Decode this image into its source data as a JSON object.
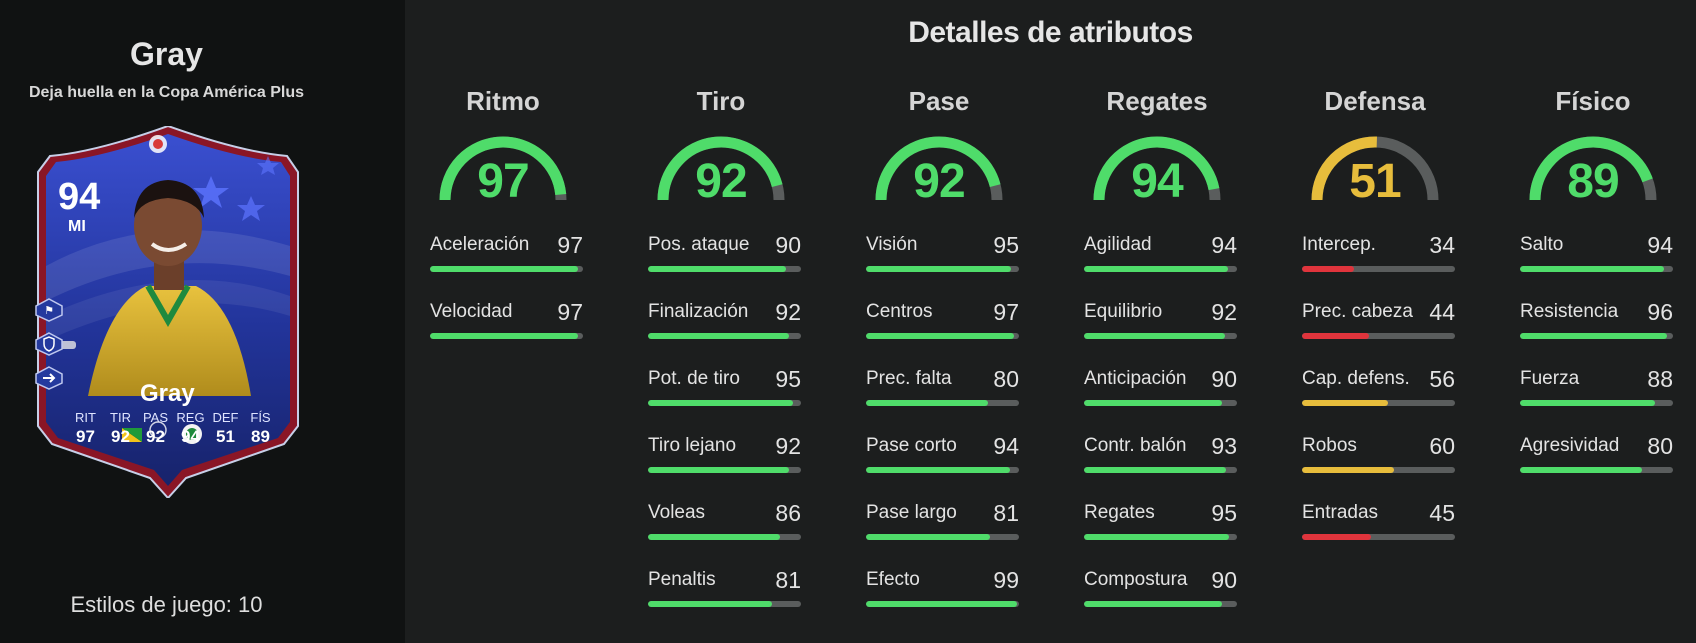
{
  "player": {
    "name": "Gray",
    "subtitle": "Deja huella en la Copa América Plus",
    "styles_label": "Estilos de juego: 10"
  },
  "card": {
    "ovr": "94",
    "position": "MI",
    "name": "Gray",
    "stats": [
      {
        "label": "RIT",
        "value": "97"
      },
      {
        "label": "TIR",
        "value": "92"
      },
      {
        "label": "PAS",
        "value": "92"
      },
      {
        "label": "REG",
        "value": "94"
      },
      {
        "label": "DEF",
        "value": "51"
      },
      {
        "label": "FÍS",
        "value": "89"
      }
    ],
    "side_icons": [
      "tactic-icon",
      "shield-icon",
      "arrow-right-icon"
    ]
  },
  "details": {
    "title": "Detalles de atributos",
    "categories": [
      {
        "name": "Ritmo",
        "value": 97,
        "color": "#4fdc6a",
        "attrs": [
          {
            "label": "Aceleración",
            "value": 97
          },
          {
            "label": "Velocidad",
            "value": 97
          }
        ]
      },
      {
        "name": "Tiro",
        "value": 92,
        "color": "#4fdc6a",
        "attrs": [
          {
            "label": "Pos. ataque",
            "value": 90
          },
          {
            "label": "Finalización",
            "value": 92
          },
          {
            "label": "Pot. de tiro",
            "value": 95
          },
          {
            "label": "Tiro lejano",
            "value": 92
          },
          {
            "label": "Voleas",
            "value": 86
          },
          {
            "label": "Penaltis",
            "value": 81
          }
        ]
      },
      {
        "name": "Pase",
        "value": 92,
        "color": "#4fdc6a",
        "attrs": [
          {
            "label": "Visión",
            "value": 95
          },
          {
            "label": "Centros",
            "value": 97
          },
          {
            "label": "Prec. falta",
            "value": 80
          },
          {
            "label": "Pase corto",
            "value": 94
          },
          {
            "label": "Pase largo",
            "value": 81
          },
          {
            "label": "Efecto",
            "value": 99
          }
        ]
      },
      {
        "name": "Regates",
        "value": 94,
        "color": "#4fdc6a",
        "attrs": [
          {
            "label": "Agilidad",
            "value": 94
          },
          {
            "label": "Equilibrio",
            "value": 92
          },
          {
            "label": "Anticipación",
            "value": 90
          },
          {
            "label": "Contr. balón",
            "value": 93
          },
          {
            "label": "Regates",
            "value": 95
          },
          {
            "label": "Compostura",
            "value": 90
          }
        ]
      },
      {
        "name": "Defensa",
        "value": 51,
        "color": "#e7bd3c",
        "attrs": [
          {
            "label": "Intercep.",
            "value": 34
          },
          {
            "label": "Prec. cabeza",
            "value": 44
          },
          {
            "label": "Cap. defens.",
            "value": 56
          },
          {
            "label": "Robos",
            "value": 60
          },
          {
            "label": "Entradas",
            "value": 45
          }
        ]
      },
      {
        "name": "Físico",
        "value": 89,
        "color": "#4fdc6a",
        "attrs": [
          {
            "label": "Salto",
            "value": 94
          },
          {
            "label": "Resistencia",
            "value": 96
          },
          {
            "label": "Fuerza",
            "value": 88
          },
          {
            "label": "Agresividad",
            "value": 80
          }
        ]
      }
    ]
  },
  "colors": {
    "high": "#4fdc6a",
    "medium": "#e7bd3c",
    "low": "#e0343c",
    "track": "#5a5d5d",
    "card_blue": "#22349a"
  }
}
